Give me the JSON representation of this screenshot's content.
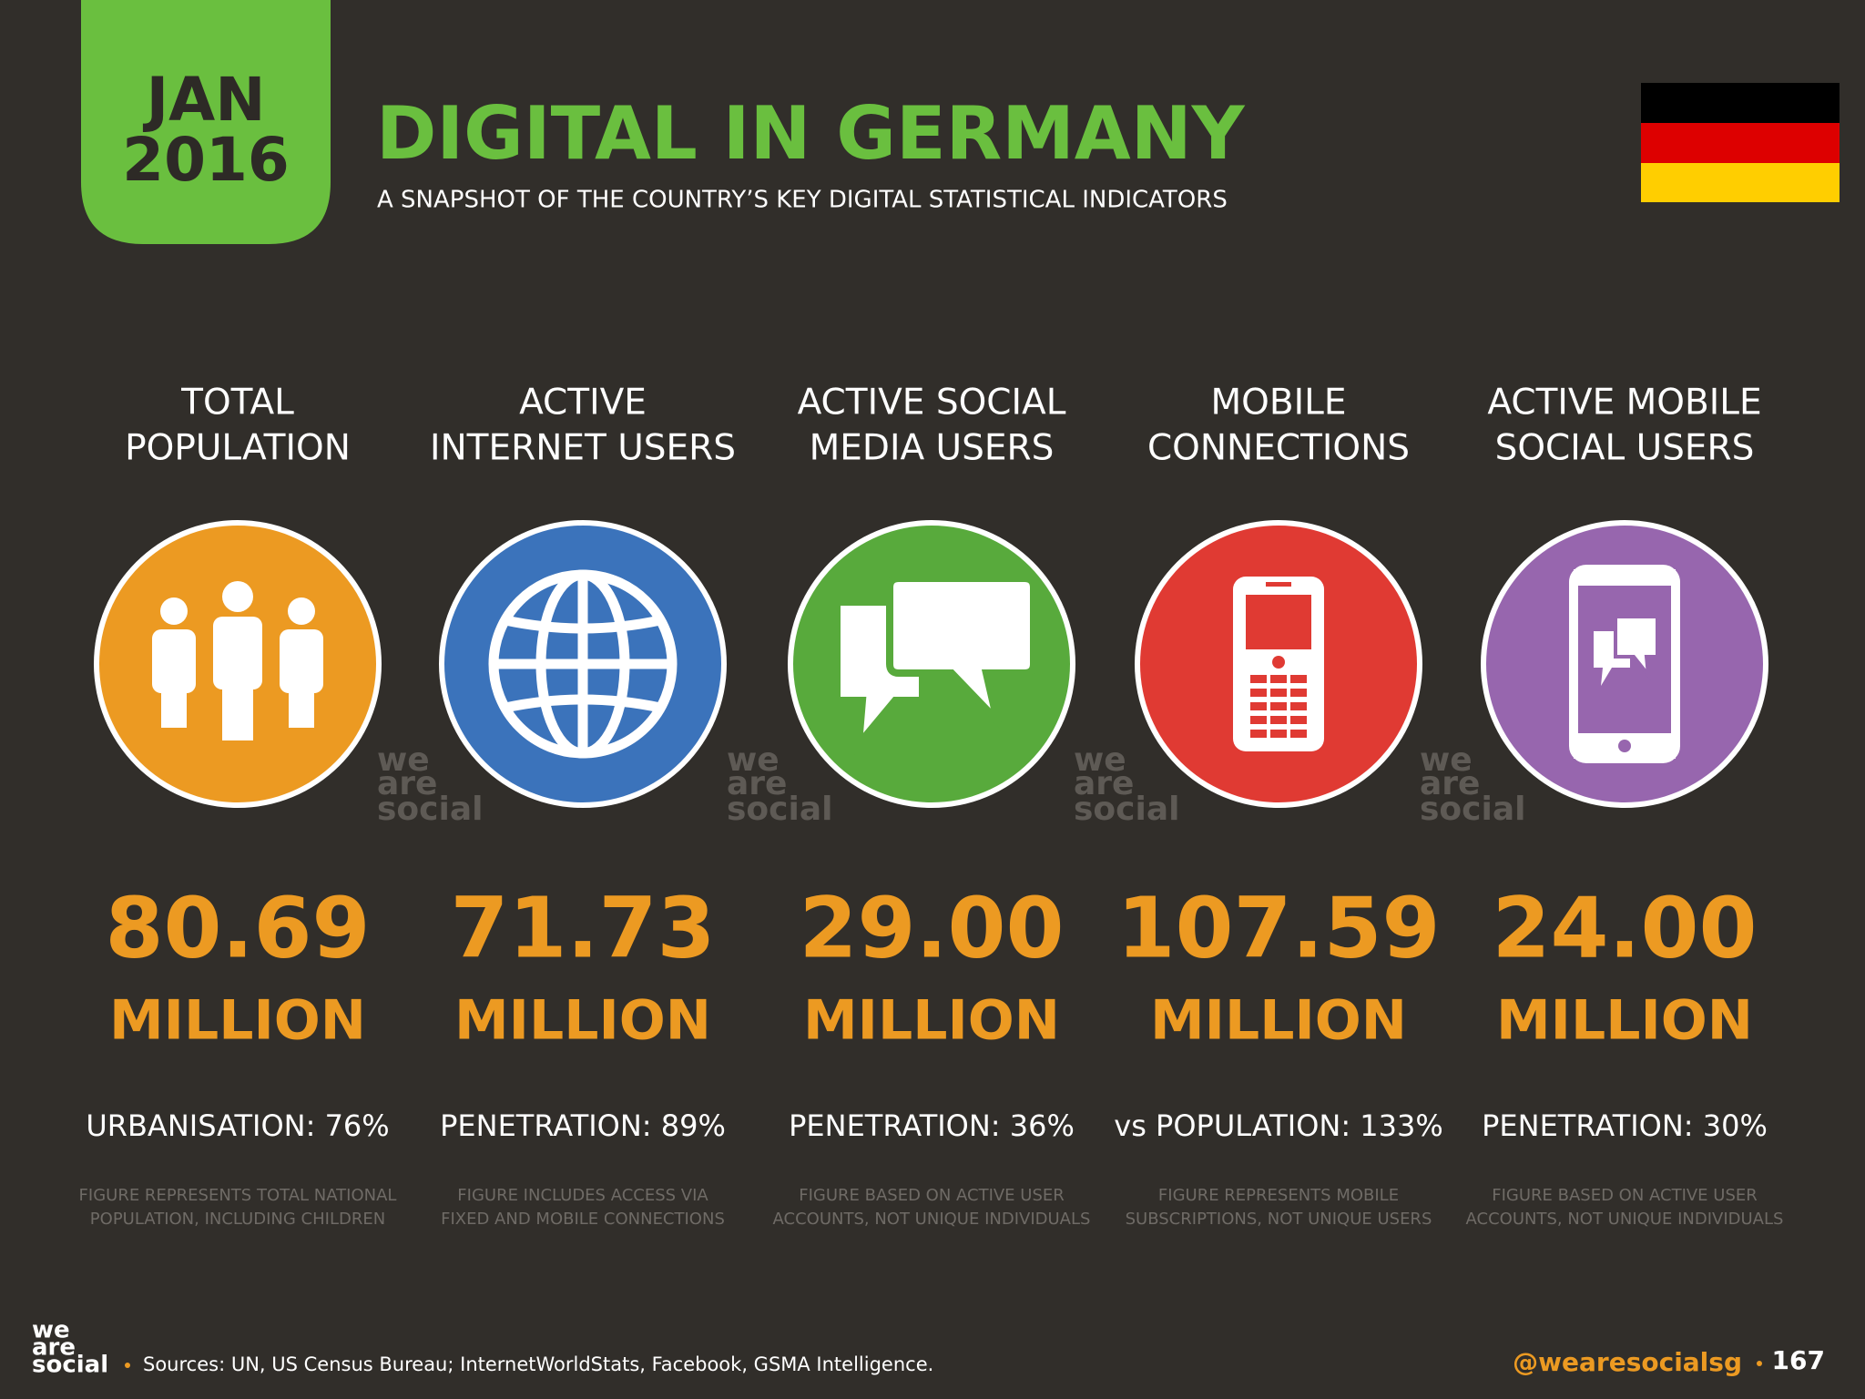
{
  "header": {
    "date_line1": "JAN",
    "date_line2": "2016",
    "title": "DIGITAL IN GERMANY",
    "subtitle": "A SNAPSHOT OF THE COUNTRY’S KEY DIGITAL STATISTICAL INDICATORS"
  },
  "columns": [
    {
      "label_line1": "TOTAL",
      "label_line2": "POPULATION",
      "value": "80.69",
      "unit": "MILLION",
      "stat": "URBANISATION: 76%",
      "note_line1": "FIGURE REPRESENTS TOTAL NATIONAL",
      "note_line2": "POPULATION, INCLUDING CHILDREN",
      "color": "#ec9a22"
    },
    {
      "label_line1": "ACTIVE",
      "label_line2": "INTERNET USERS",
      "value": "71.73",
      "unit": "MILLION",
      "stat": "PENETRATION: 89%",
      "note_line1": "FIGURE INCLUDES ACCESS VIA",
      "note_line2": "FIXED AND MOBILE CONNECTIONS",
      "color": "#3b73bb"
    },
    {
      "label_line1": "ACTIVE SOCIAL",
      "label_line2": "MEDIA USERS",
      "value": "29.00",
      "unit": "MILLION",
      "stat": "PENETRATION: 36%",
      "note_line1": "FIGURE BASED ON ACTIVE USER",
      "note_line2": "ACCOUNTS, NOT UNIQUE INDIVIDUALS",
      "color": "#58aa3c"
    },
    {
      "label_line1": "MOBILE",
      "label_line2": "CONNECTIONS",
      "value": "107.59",
      "unit": "MILLION",
      "stat": "vs POPULATION: 133%",
      "note_line1": "FIGURE REPRESENTS MOBILE",
      "note_line2": "SUBSCRIPTIONS, NOT UNIQUE USERS",
      "color": "#e03a33"
    },
    {
      "label_line1": "ACTIVE MOBILE",
      "label_line2": "SOCIAL USERS",
      "value": "24.00",
      "unit": "MILLION",
      "stat": "PENETRATION: 30%",
      "note_line1": "FIGURE BASED ON ACTIVE USER",
      "note_line2": "ACCOUNTS, NOT UNIQUE INDIVIDUALS",
      "color": "#9766ae"
    }
  ],
  "watermark": [
    "we",
    "are",
    "social"
  ],
  "footer": {
    "sources": "Sources: UN, US Census Bureau; InternetWorldStats, Facebook, GSMA Intelligence.",
    "handle": "@wearesocialsg",
    "page": "167"
  }
}
